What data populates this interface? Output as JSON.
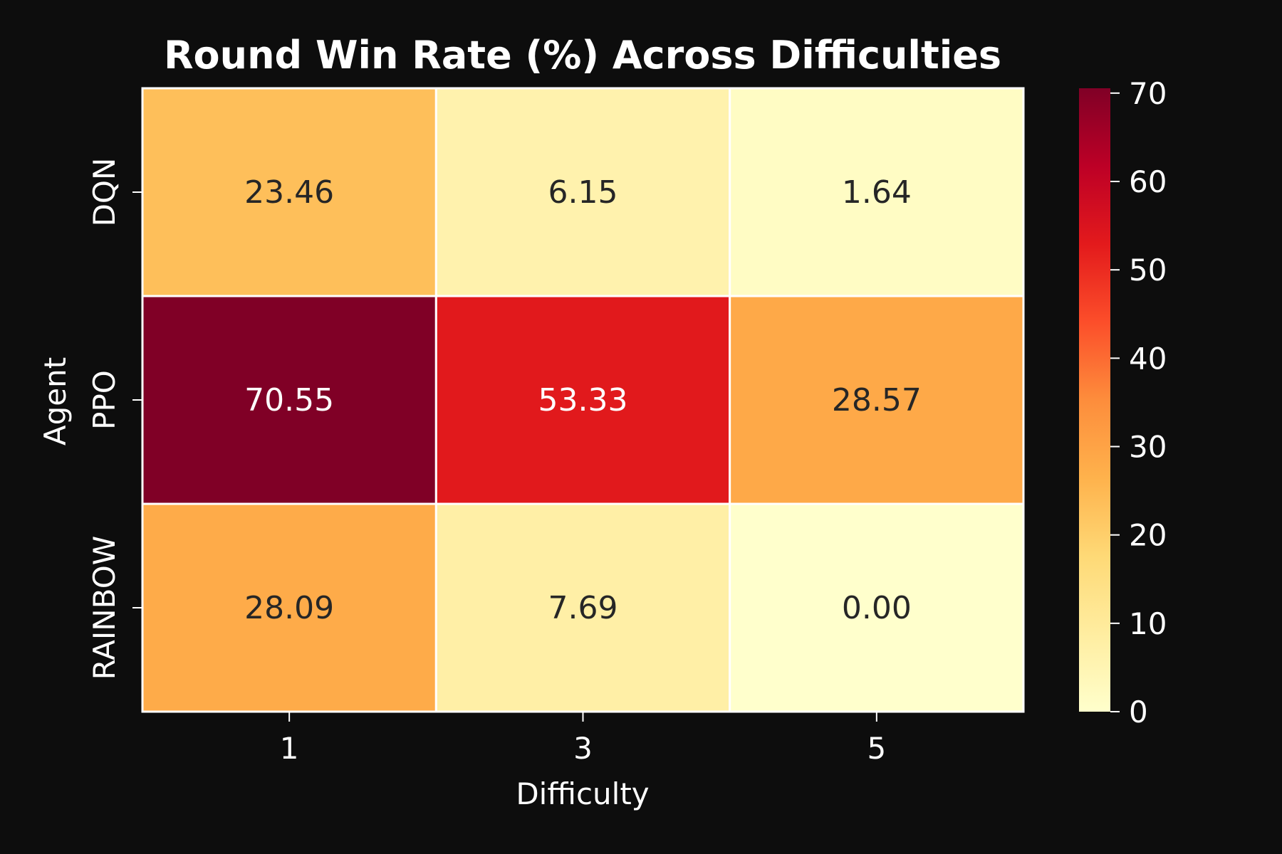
{
  "colors": {
    "background": "#0d0d0d",
    "text": "#ffffff",
    "cell_border": "#ffffff",
    "value_text_dark": "#262626",
    "value_text_light": "#ffffff",
    "colormap": "YlOrRd"
  },
  "chart_data": {
    "type": "heatmap",
    "title": "Round Win Rate (%) Across Difficulties",
    "xlabel": "Difficulty",
    "ylabel": "Agent",
    "x_categories": [
      "1",
      "3",
      "5"
    ],
    "y_categories": [
      "DQN",
      "PPO",
      "RAINBOW"
    ],
    "values": [
      [
        23.46,
        6.15,
        1.64
      ],
      [
        70.55,
        53.33,
        28.57
      ],
      [
        28.09,
        7.69,
        0.0
      ]
    ],
    "value_labels": [
      [
        "23.46",
        "6.15",
        "1.64"
      ],
      [
        "70.55",
        "53.33",
        "28.57"
      ],
      [
        "28.09",
        "7.69",
        "0.00"
      ]
    ],
    "colorbar": {
      "range": [
        0,
        70.55
      ],
      "ticks": [
        0,
        10,
        20,
        30,
        40,
        50,
        60,
        70
      ],
      "tick_labels": [
        "0",
        "10",
        "20",
        "30",
        "40",
        "50",
        "60",
        "70"
      ]
    }
  }
}
